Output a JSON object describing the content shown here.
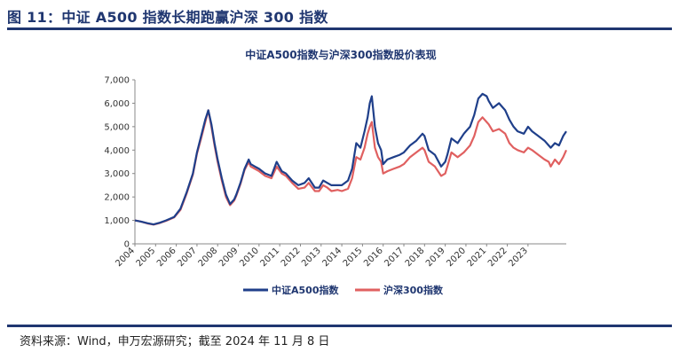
{
  "figure": {
    "title": "图 11：中证 A500 指数长期跑赢沪深 300 指数",
    "source": "资料来源：Wind，申万宏源研究；截至 2024 年 11 月 8 日"
  },
  "chart_data": {
    "type": "line",
    "title": "中证A500指数与沪深300指数股价表现",
    "xlabel": "",
    "ylabel": "",
    "ylim": [
      0,
      7000
    ],
    "yticks": [
      "0",
      "1,000",
      "2,000",
      "3,000",
      "4,000",
      "5,000",
      "6,000",
      "7,000"
    ],
    "xlim": [
      2004.0,
      2024.85
    ],
    "xticks": [
      "2004",
      "2005",
      "2006",
      "2007",
      "2008",
      "2009",
      "2010",
      "2011",
      "2012",
      "2013",
      "2014",
      "2015",
      "2016",
      "2017",
      "2018",
      "2019",
      "2020",
      "2021",
      "2022",
      "2023"
    ],
    "grid": false,
    "legend": "bottom",
    "series": [
      {
        "name": "中证A500指数",
        "color": "#1f3f8a",
        "x": [
          2004.0,
          2004.3,
          2004.6,
          2004.9,
          2005.2,
          2005.5,
          2005.9,
          2006.2,
          2006.5,
          2006.8,
          2007.0,
          2007.2,
          2007.4,
          2007.55,
          2007.7,
          2007.85,
          2008.0,
          2008.2,
          2008.4,
          2008.6,
          2008.8,
          2008.9,
          2009.1,
          2009.3,
          2009.5,
          2009.6,
          2009.8,
          2010.0,
          2010.3,
          2010.6,
          2010.85,
          2011.1,
          2011.3,
          2011.6,
          2011.9,
          2012.2,
          2012.4,
          2012.7,
          2012.9,
          2013.1,
          2013.3,
          2013.5,
          2013.8,
          2014.0,
          2014.3,
          2014.5,
          2014.7,
          2014.9,
          2015.1,
          2015.25,
          2015.35,
          2015.45,
          2015.6,
          2015.75,
          2015.9,
          2016.0,
          2016.2,
          2016.5,
          2016.8,
          2017.0,
          2017.3,
          2017.6,
          2017.9,
          2018.0,
          2018.2,
          2018.5,
          2018.8,
          2019.0,
          2019.1,
          2019.3,
          2019.6,
          2019.9,
          2020.0,
          2020.2,
          2020.4,
          2020.6,
          2020.8,
          2021.0,
          2021.1,
          2021.3,
          2021.6,
          2021.9,
          2022.1,
          2022.3,
          2022.5,
          2022.8,
          2023.0,
          2023.2,
          2023.5,
          2023.8,
          2024.0,
          2024.1,
          2024.3,
          2024.5,
          2024.7,
          2024.85
        ],
        "y": [
          1000,
          950,
          880,
          830,
          900,
          1000,
          1150,
          1500,
          2200,
          3000,
          3900,
          4600,
          5300,
          5700,
          5100,
          4300,
          3600,
          2800,
          2100,
          1700,
          1900,
          2100,
          2600,
          3200,
          3600,
          3400,
          3300,
          3200,
          3000,
          2900,
          3500,
          3100,
          3000,
          2700,
          2500,
          2600,
          2800,
          2400,
          2400,
          2700,
          2600,
          2500,
          2500,
          2500,
          2700,
          3200,
          4300,
          4100,
          4800,
          5400,
          6000,
          6300,
          5000,
          4300,
          4000,
          3400,
          3600,
          3700,
          3800,
          3900,
          4200,
          4400,
          4700,
          4600,
          4000,
          3800,
          3300,
          3500,
          3800,
          4500,
          4300,
          4700,
          4800,
          5000,
          5500,
          6200,
          6400,
          6300,
          6100,
          5800,
          6000,
          5700,
          5300,
          5000,
          4800,
          4700,
          5000,
          4800,
          4600,
          4400,
          4200,
          4100,
          4300,
          4200,
          4600,
          4800
        ]
      },
      {
        "name": "沪深300指数",
        "color": "#e06060",
        "x": [
          2004.0,
          2004.3,
          2004.6,
          2004.9,
          2005.2,
          2005.5,
          2005.9,
          2006.2,
          2006.5,
          2006.8,
          2007.0,
          2007.2,
          2007.4,
          2007.55,
          2007.7,
          2007.85,
          2008.0,
          2008.2,
          2008.4,
          2008.6,
          2008.8,
          2008.9,
          2009.1,
          2009.3,
          2009.5,
          2009.6,
          2009.8,
          2010.0,
          2010.3,
          2010.6,
          2010.85,
          2011.1,
          2011.3,
          2011.6,
          2011.9,
          2012.2,
          2012.4,
          2012.7,
          2012.9,
          2013.1,
          2013.3,
          2013.5,
          2013.8,
          2014.0,
          2014.3,
          2014.5,
          2014.7,
          2014.9,
          2015.1,
          2015.25,
          2015.35,
          2015.45,
          2015.6,
          2015.75,
          2015.9,
          2016.0,
          2016.2,
          2016.5,
          2016.8,
          2017.0,
          2017.3,
          2017.6,
          2017.9,
          2018.0,
          2018.2,
          2018.5,
          2018.8,
          2019.0,
          2019.1,
          2019.3,
          2019.6,
          2019.9,
          2020.0,
          2020.2,
          2020.4,
          2020.6,
          2020.8,
          2021.0,
          2021.1,
          2021.3,
          2021.6,
          2021.9,
          2022.1,
          2022.3,
          2022.5,
          2022.8,
          2023.0,
          2023.2,
          2023.5,
          2023.8,
          2024.0,
          2024.1,
          2024.3,
          2024.5,
          2024.7,
          2024.85
        ],
        "y": [
          1000,
          950,
          870,
          820,
          890,
          980,
          1130,
          1450,
          2150,
          2950,
          3850,
          4500,
          5200,
          5700,
          5000,
          4200,
          3500,
          2700,
          2000,
          1650,
          1850,
          2050,
          2550,
          3150,
          3500,
          3300,
          3200,
          3100,
          2900,
          2800,
          3300,
          3000,
          2900,
          2600,
          2350,
          2400,
          2600,
          2250,
          2250,
          2500,
          2400,
          2250,
          2300,
          2250,
          2350,
          2800,
          3700,
          3600,
          4100,
          4700,
          5000,
          5200,
          4100,
          3700,
          3500,
          3000,
          3100,
          3200,
          3300,
          3400,
          3700,
          3900,
          4100,
          4000,
          3500,
          3300,
          2900,
          3000,
          3300,
          3900,
          3700,
          3900,
          4000,
          4200,
          4600,
          5200,
          5400,
          5200,
          5100,
          4800,
          4900,
          4700,
          4300,
          4100,
          4000,
          3900,
          4100,
          4000,
          3800,
          3600,
          3500,
          3300,
          3600,
          3400,
          3700,
          4000
        ]
      }
    ]
  }
}
